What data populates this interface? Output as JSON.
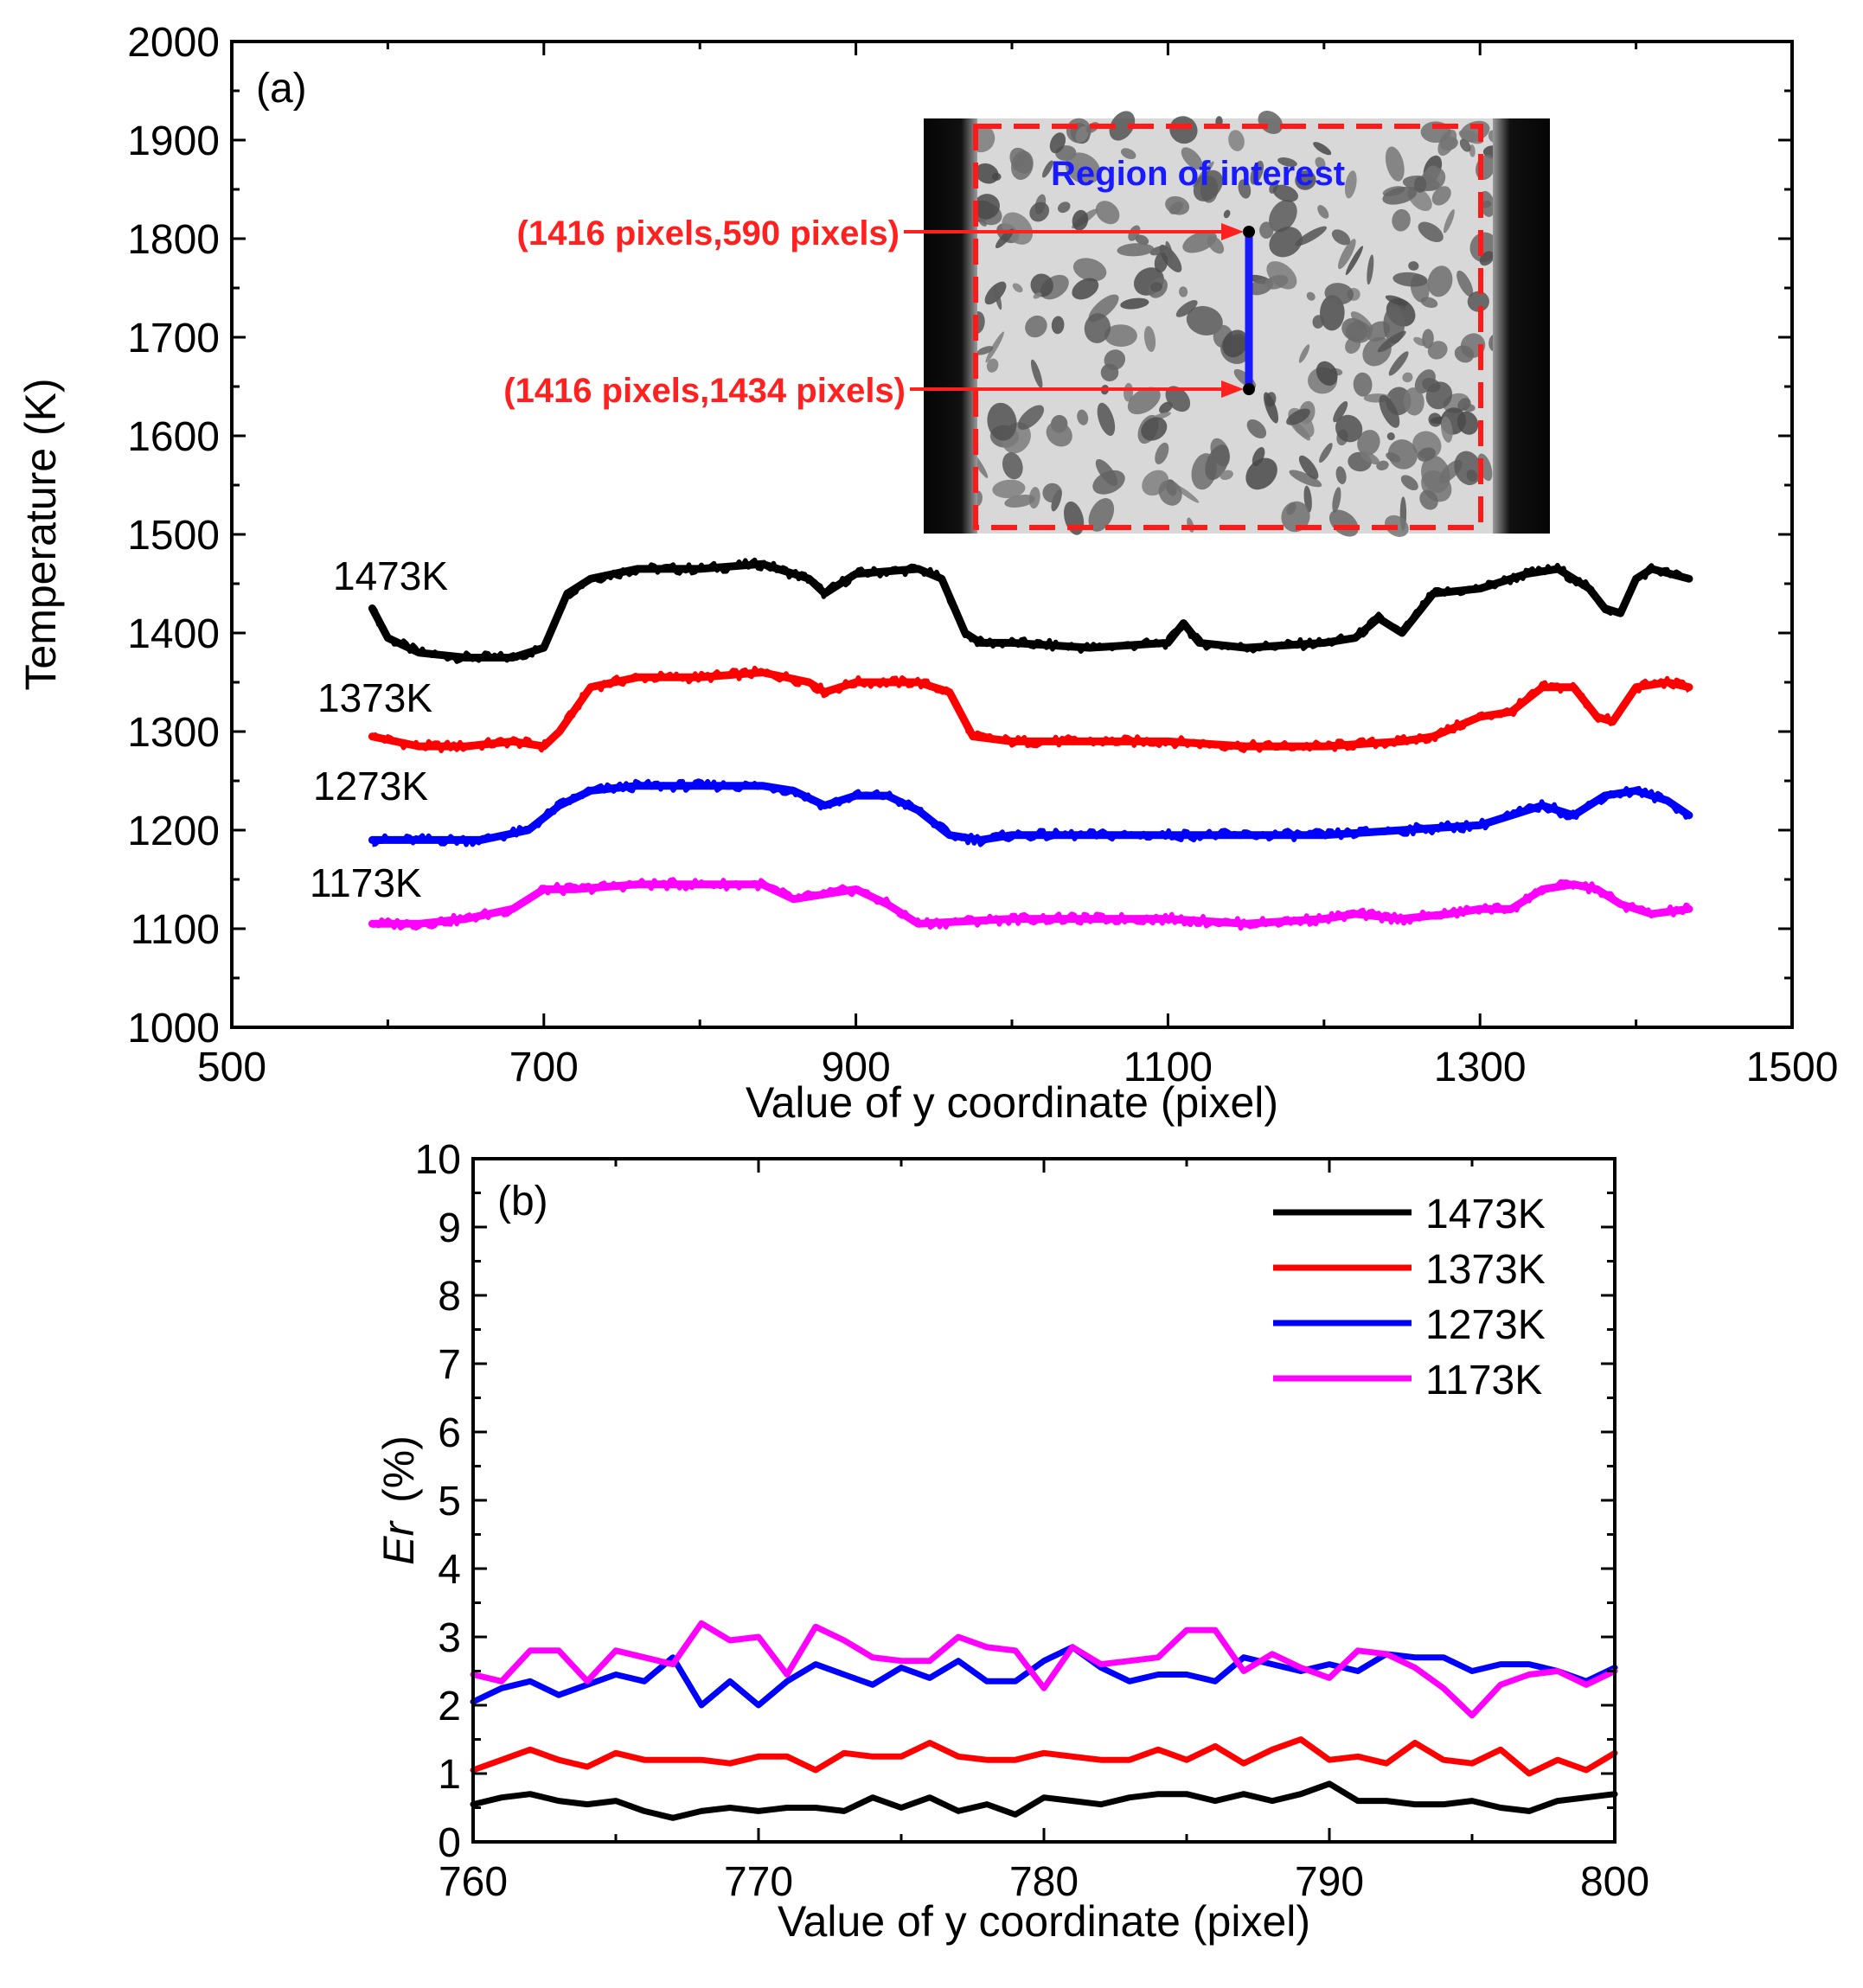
{
  "chart_data": [
    {
      "panel_label": "(a)",
      "type": "line",
      "xlabel": "Value of y coordinate (pixel)",
      "ylabel": "Temperature (K)",
      "xlim": [
        500,
        1500
      ],
      "ylim": [
        1000,
        2000
      ],
      "xticks": [
        "500",
        "700",
        "900",
        "1100",
        "1300",
        "1500"
      ],
      "yticks": [
        "1000",
        "1100",
        "1200",
        "1300",
        "1400",
        "1500",
        "1600",
        "1700",
        "1800",
        "1900",
        "2000"
      ],
      "series": [
        {
          "name": "1473K",
          "color": "#000000",
          "x": [
            590,
            600,
            620,
            650,
            680,
            700,
            715,
            730,
            760,
            800,
            840,
            870,
            880,
            900,
            940,
            955,
            970,
            980,
            1000,
            1050,
            1100,
            1110,
            1120,
            1150,
            1200,
            1220,
            1235,
            1250,
            1270,
            1300,
            1330,
            1350,
            1370,
            1380,
            1390,
            1400,
            1410,
            1434
          ],
          "y": [
            1425,
            1395,
            1380,
            1375,
            1375,
            1385,
            1440,
            1455,
            1465,
            1465,
            1470,
            1455,
            1440,
            1460,
            1465,
            1455,
            1400,
            1390,
            1390,
            1385,
            1390,
            1410,
            1390,
            1385,
            1390,
            1395,
            1415,
            1400,
            1440,
            1445,
            1460,
            1465,
            1445,
            1425,
            1420,
            1455,
            1465,
            1455
          ]
        },
        {
          "name": "1373K",
          "color": "#ff0000",
          "x": [
            590,
            620,
            650,
            680,
            700,
            710,
            730,
            760,
            800,
            840,
            870,
            880,
            900,
            940,
            960,
            975,
            1000,
            1050,
            1100,
            1150,
            1200,
            1250,
            1270,
            1300,
            1320,
            1340,
            1360,
            1375,
            1385,
            1400,
            1420,
            1434
          ],
          "y": [
            1295,
            1285,
            1285,
            1290,
            1285,
            1300,
            1345,
            1355,
            1355,
            1360,
            1350,
            1340,
            1350,
            1350,
            1340,
            1295,
            1290,
            1290,
            1290,
            1285,
            1285,
            1290,
            1295,
            1315,
            1320,
            1345,
            1345,
            1315,
            1310,
            1345,
            1350,
            1345
          ]
        },
        {
          "name": "1273K",
          "color": "#0000ff",
          "x": [
            590,
            620,
            660,
            690,
            710,
            730,
            760,
            800,
            840,
            860,
            880,
            900,
            920,
            940,
            960,
            980,
            1000,
            1050,
            1100,
            1150,
            1200,
            1250,
            1300,
            1320,
            1340,
            1360,
            1380,
            1400,
            1420,
            1434
          ],
          "y": [
            1190,
            1190,
            1190,
            1200,
            1225,
            1240,
            1245,
            1245,
            1245,
            1240,
            1225,
            1235,
            1235,
            1220,
            1195,
            1190,
            1195,
            1195,
            1195,
            1195,
            1195,
            1200,
            1205,
            1215,
            1225,
            1215,
            1235,
            1240,
            1230,
            1215
          ]
        },
        {
          "name": "1173K",
          "color": "#ff00ff",
          "x": [
            590,
            620,
            650,
            680,
            700,
            720,
            760,
            800,
            840,
            860,
            880,
            900,
            920,
            940,
            1000,
            1050,
            1100,
            1150,
            1200,
            1220,
            1250,
            1280,
            1300,
            1320,
            1340,
            1360,
            1375,
            1390,
            1410,
            1434
          ],
          "y": [
            1105,
            1105,
            1110,
            1120,
            1140,
            1140,
            1145,
            1145,
            1145,
            1130,
            1135,
            1140,
            1125,
            1105,
            1110,
            1110,
            1110,
            1105,
            1110,
            1115,
            1110,
            1115,
            1120,
            1120,
            1140,
            1145,
            1140,
            1125,
            1115,
            1120
          ]
        }
      ],
      "series_labels": [
        "1473K",
        "1373K",
        "1273K",
        "1173K"
      ],
      "inset": {
        "title": "Region of interest",
        "point_top": "(1416 pixels,590 pixels)",
        "point_bottom": "(1416 pixels,1434 pixels)"
      }
    },
    {
      "panel_label": "(b)",
      "type": "line",
      "xlabel": "Value of y coordinate (pixel)",
      "ylabel_italic": "Er",
      "ylabel_unit": "(%)",
      "xlim": [
        760,
        800
      ],
      "ylim": [
        0,
        10
      ],
      "xticks": [
        "760",
        "770",
        "780",
        "790",
        "800"
      ],
      "yticks": [
        "0",
        "1",
        "2",
        "3",
        "4",
        "5",
        "6",
        "7",
        "8",
        "9",
        "10"
      ],
      "legend_position": "top-right",
      "series": [
        {
          "name": "1473K",
          "color": "#000000",
          "x": [
            760,
            761,
            762,
            763,
            764,
            765,
            766,
            767,
            768,
            769,
            770,
            771,
            772,
            773,
            774,
            775,
            776,
            777,
            778,
            779,
            780,
            781,
            782,
            783,
            784,
            785,
            786,
            787,
            788,
            789,
            790,
            791,
            792,
            793,
            794,
            795,
            796,
            797,
            798,
            799,
            800
          ],
          "y": [
            0.55,
            0.65,
            0.7,
            0.6,
            0.55,
            0.6,
            0.45,
            0.35,
            0.45,
            0.5,
            0.45,
            0.5,
            0.5,
            0.45,
            0.65,
            0.5,
            0.65,
            0.45,
            0.55,
            0.4,
            0.65,
            0.6,
            0.55,
            0.65,
            0.7,
            0.7,
            0.6,
            0.7,
            0.6,
            0.7,
            0.85,
            0.6,
            0.6,
            0.55,
            0.55,
            0.6,
            0.5,
            0.45,
            0.6,
            0.65,
            0.7
          ]
        },
        {
          "name": "1373K",
          "color": "#ff0000",
          "x": [
            760,
            761,
            762,
            763,
            764,
            765,
            766,
            767,
            768,
            769,
            770,
            771,
            772,
            773,
            774,
            775,
            776,
            777,
            778,
            779,
            780,
            781,
            782,
            783,
            784,
            785,
            786,
            787,
            788,
            789,
            790,
            791,
            792,
            793,
            794,
            795,
            796,
            797,
            798,
            799,
            800
          ],
          "y": [
            1.05,
            1.2,
            1.35,
            1.2,
            1.1,
            1.3,
            1.2,
            1.2,
            1.2,
            1.15,
            1.25,
            1.25,
            1.05,
            1.3,
            1.25,
            1.25,
            1.45,
            1.25,
            1.2,
            1.2,
            1.3,
            1.25,
            1.2,
            1.2,
            1.35,
            1.2,
            1.4,
            1.15,
            1.35,
            1.5,
            1.2,
            1.25,
            1.15,
            1.45,
            1.2,
            1.15,
            1.35,
            1.0,
            1.2,
            1.05,
            1.3
          ]
        },
        {
          "name": "1273K",
          "color": "#0000ff",
          "x": [
            760,
            761,
            762,
            763,
            764,
            765,
            766,
            767,
            768,
            769,
            770,
            771,
            772,
            773,
            774,
            775,
            776,
            777,
            778,
            779,
            780,
            781,
            782,
            783,
            784,
            785,
            786,
            787,
            788,
            789,
            790,
            791,
            792,
            793,
            794,
            795,
            796,
            797,
            798,
            799,
            800
          ],
          "y": [
            2.05,
            2.25,
            2.35,
            2.15,
            2.3,
            2.45,
            2.35,
            2.7,
            2.0,
            2.35,
            2.0,
            2.35,
            2.6,
            2.45,
            2.3,
            2.55,
            2.4,
            2.65,
            2.35,
            2.35,
            2.65,
            2.85,
            2.55,
            2.35,
            2.45,
            2.45,
            2.35,
            2.7,
            2.6,
            2.5,
            2.6,
            2.5,
            2.75,
            2.7,
            2.7,
            2.5,
            2.6,
            2.6,
            2.5,
            2.35,
            2.55
          ]
        },
        {
          "name": "1173K",
          "color": "#ff00ff",
          "x": [
            760,
            761,
            762,
            763,
            764,
            765,
            766,
            767,
            768,
            769,
            770,
            771,
            772,
            773,
            774,
            775,
            776,
            777,
            778,
            779,
            780,
            781,
            782,
            783,
            784,
            785,
            786,
            787,
            788,
            789,
            790,
            791,
            792,
            793,
            794,
            795,
            796,
            797,
            798,
            799,
            800
          ],
          "y": [
            2.45,
            2.35,
            2.8,
            2.8,
            2.35,
            2.8,
            2.7,
            2.6,
            3.2,
            2.95,
            3.0,
            2.45,
            3.15,
            2.95,
            2.7,
            2.65,
            2.65,
            3.0,
            2.85,
            2.8,
            2.25,
            2.85,
            2.6,
            2.65,
            2.7,
            3.1,
            3.1,
            2.5,
            2.75,
            2.55,
            2.4,
            2.8,
            2.75,
            2.55,
            2.25,
            1.85,
            2.3,
            2.45,
            2.5,
            2.3,
            2.5
          ]
        }
      ],
      "legend": [
        "1473K",
        "1373K",
        "1273K",
        "1173K"
      ]
    }
  ]
}
